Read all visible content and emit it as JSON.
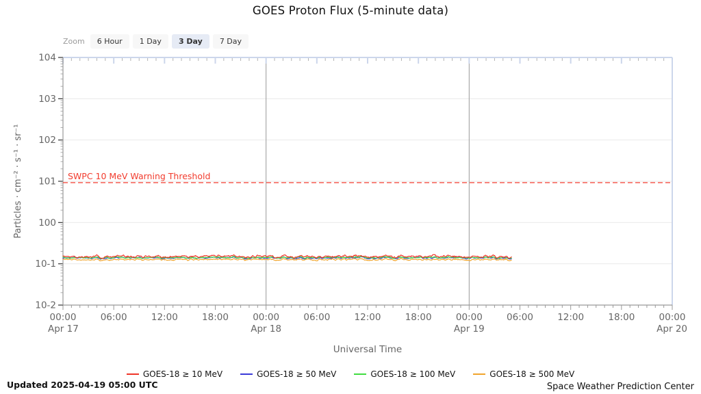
{
  "chart_data": {
    "type": "line",
    "title": "GOES Proton Flux (5-minute data)",
    "xlabel": "Universal Time",
    "ylabel": "Particles · cm⁻² · s⁻¹ · sr⁻¹",
    "x_axis": {
      "hours_span": 72,
      "tick_interval_hours": 6,
      "tick_labels": [
        "00:00",
        "06:00",
        "12:00",
        "18:00",
        "00:00",
        "06:00",
        "12:00",
        "18:00",
        "00:00",
        "06:00",
        "12:00",
        "18:00",
        "00:00"
      ],
      "date_labels": [
        {
          "hour": 0,
          "label": "Apr 17"
        },
        {
          "hour": 24,
          "label": "Apr 18"
        },
        {
          "hour": 48,
          "label": "Apr 19"
        },
        {
          "hour": 72,
          "label": "Apr 20"
        }
      ]
    },
    "y_axis": {
      "scale": "log",
      "min_exp": -2,
      "max_exp": 4,
      "tick_labels": [
        "104",
        "103",
        "102",
        "101",
        "100",
        "10-1",
        "10-2"
      ]
    },
    "grid": {
      "horizontal_decades": true,
      "vertical_day_lines_hours": [
        24,
        48
      ]
    },
    "threshold": {
      "label": "SWPC 10 MeV Warning Threshold",
      "value": 10,
      "log_value": 1,
      "color": "#f23b2d"
    },
    "data_end_hour": 53,
    "points_per_hour": 12,
    "series": [
      {
        "name": "GOES-18 ≥ 10 MeV",
        "color": "#ef3428",
        "approx_flux": 0.15,
        "log_mean": -0.82,
        "log_noise": 0.055
      },
      {
        "name": "GOES-18 ≥ 50 MeV",
        "color": "#3a3ad8",
        "approx_flux": 0.14,
        "log_mean": -0.856,
        "log_noise": 0.035
      },
      {
        "name": "GOES-18 ≥ 100 MeV",
        "color": "#3fdc3f",
        "approx_flux": 0.143,
        "log_mean": -0.846,
        "log_noise": 0.035
      },
      {
        "name": "GOES-18 ≥ 500 MeV",
        "color": "#f0a42c",
        "approx_flux": 0.127,
        "log_mean": -0.896,
        "log_noise": 0.035
      }
    ],
    "colors": {
      "frame": "#ccd6eb",
      "axis": "#999999",
      "grid_line": "#eaeaea",
      "day_line": "#999999",
      "tick_text": "#666666"
    }
  },
  "toolbar": {
    "zoom_label": "Zoom",
    "buttons": [
      "6 Hour",
      "1 Day",
      "3 Day",
      "7 Day"
    ],
    "selected": "3 Day"
  },
  "footer": {
    "updated": "Updated 2025-04-19 05:00 UTC",
    "credit": "Space Weather Prediction Center"
  }
}
